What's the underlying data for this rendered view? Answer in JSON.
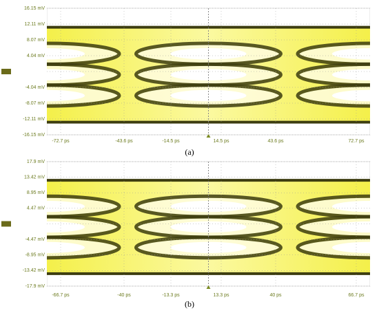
{
  "panels": [
    {
      "y_labels": [
        "16.15 mV",
        "12.11 mV",
        "8.07 mV",
        "4.04 mV",
        "-4.04 mV",
        "-8.07 mV",
        "-12.11 mV",
        "-16.15 mV"
      ],
      "x_labels": [
        "-72.7 ps",
        "-43.6 ps",
        "-14.5 ps",
        "14.5 ps",
        "43.6 ps",
        "72.7 ps"
      ],
      "caption": "(a)"
    },
    {
      "y_labels": [
        "17.9 mV",
        "13.42 mV",
        "8.95 mV",
        "4.47 mV",
        "-4.47 mV",
        "-8.95 mV",
        "-13.42 mV",
        "-17.9 mV"
      ],
      "x_labels": [
        "-66.7 ps",
        "-40 ps",
        "-13.3 ps",
        "13.3 ps",
        "40 ps",
        "66.7 ps"
      ],
      "caption": "(b)"
    }
  ]
}
